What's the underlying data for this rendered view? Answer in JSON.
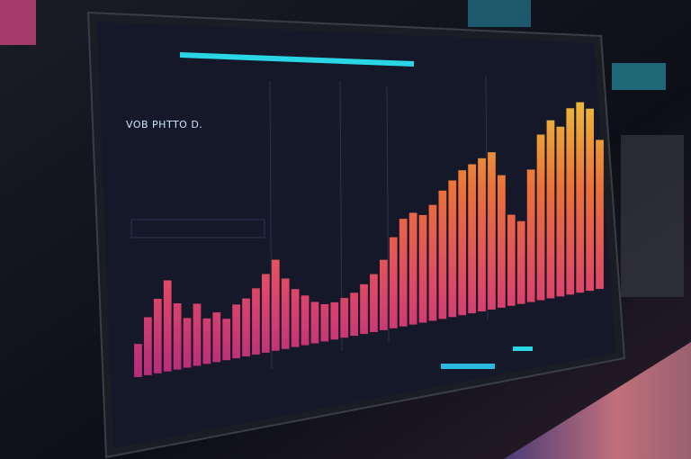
{
  "screen": {
    "title": "VOB PHTTO D.",
    "chart": {
      "type": "bar",
      "values": [
        40,
        70,
        90,
        110,
        80,
        60,
        75,
        55,
        60,
        50,
        65,
        70,
        80,
        95,
        110,
        85,
        70,
        60,
        50,
        45,
        45,
        48,
        52,
        60,
        70,
        85,
        110,
        130,
        135,
        130,
        140,
        155,
        165,
        175,
        180,
        185,
        190,
        160,
        110,
        100,
        160,
        200,
        215,
        205,
        225,
        230,
        220,
        180
      ],
      "ylim": [
        0,
        250
      ]
    }
  }
}
